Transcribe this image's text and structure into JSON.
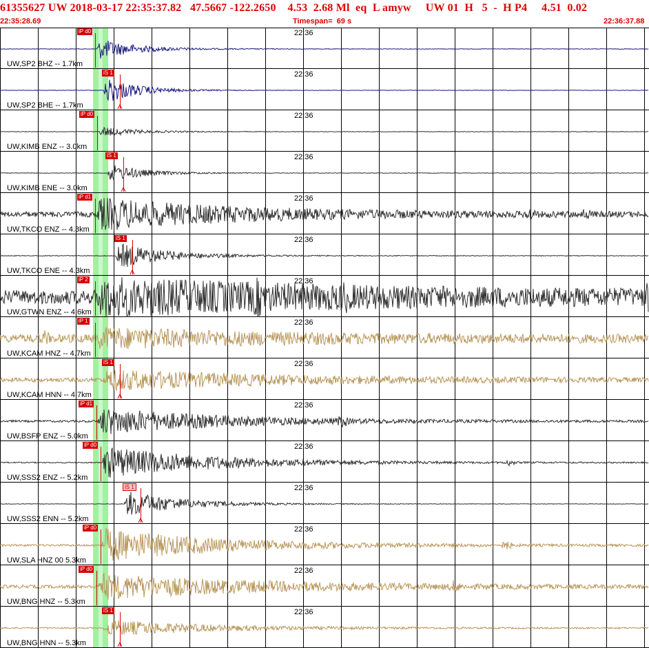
{
  "header": {
    "line1": "61355627 UW 2018-03-17 22:35:37.82   47.5667 -122.2650    4.53  2.68 Ml  eq  L amyw     UW 01  H   5  -  H P4     4.51  0.02",
    "start_time": "22:35:28.69",
    "timespan": "Timespan=  69 s",
    "end_time": "22:36:37.88"
  },
  "colors": {
    "accent": "#e00000",
    "grid": "#000000",
    "pick_box": "#d40000",
    "pick_window": "#90ee90",
    "trace_blue": "#1a1a7a",
    "trace_dark": "#303030",
    "trace_tan": "#b8965a"
  },
  "traces": [
    {
      "label": "UW,SP2 BHZ -- 1.7km",
      "time": "22:36",
      "color": "blue",
      "pick": "iP d0",
      "pick_kind": "P",
      "onset": 140,
      "decay": 55,
      "amp": 16,
      "noise": 0.4,
      "bursts": []
    },
    {
      "label": "UW,SP2 BHE -- 1.7km",
      "time": "22:36",
      "color": "blue",
      "pick": "iS 1",
      "pick_kind": "S",
      "onset": 150,
      "decay": 45,
      "amp": 22,
      "noise": 0.3,
      "bursts": []
    },
    {
      "label": "UW,KIMB ENZ -- 3.0km",
      "time": "22:36",
      "color": "dark",
      "pick": "iP d0",
      "pick_kind": "P",
      "onset": 143,
      "decay": 50,
      "amp": 8,
      "noise": 0.4,
      "bursts": []
    },
    {
      "label": "UW,KIMB ENE -- 3.0km",
      "time": "22:36",
      "color": "dark",
      "pick": "iS 1",
      "pick_kind": "S",
      "onset": 155,
      "decay": 50,
      "amp": 14,
      "noise": 0.4,
      "bursts": []
    },
    {
      "label": "UW,TKCO ENZ -- 4.3km",
      "time": "22:36",
      "color": "dark",
      "pick": "iP d1",
      "pick_kind": "P",
      "onset": 140,
      "decay": 200,
      "amp": 22,
      "noise": 4,
      "bursts": [
        [
          770,
          6
        ],
        [
          850,
          5
        ]
      ]
    },
    {
      "label": "UW,TKCO ENE -- 4.3km",
      "time": "22:36",
      "color": "dark",
      "pick": "iS 1",
      "pick_kind": "S",
      "onset": 168,
      "decay": 70,
      "amp": 20,
      "noise": 0.5,
      "bursts": []
    },
    {
      "label": "UW,GTWN ENZ -- 4.6km",
      "time": "22:36",
      "color": "dark",
      "pick": "iP 2",
      "pick_kind": "P",
      "onset": 140,
      "decay": 400,
      "amp": 22,
      "noise": 10,
      "bursts": [
        [
          375,
          10
        ],
        [
          500,
          6
        ],
        [
          940,
          10
        ]
      ]
    },
    {
      "label": "UW,KCAM HNZ -- 4.7km",
      "time": "22:36",
      "color": "tan",
      "pick": "iP 1",
      "pick_kind": "P",
      "onset": 140,
      "decay": 250,
      "amp": 12,
      "noise": 6,
      "bursts": [
        [
          65,
          6
        ]
      ]
    },
    {
      "label": "UW,KCAM HNN -- 4.7km",
      "time": "22:36",
      "color": "tan",
      "pick": "iS 1",
      "pick_kind": "S",
      "onset": 150,
      "decay": 250,
      "amp": 14,
      "noise": 3,
      "bursts": []
    },
    {
      "label": "UW,BSFP ENZ -- 5.0km",
      "time": "22:36",
      "color": "dark",
      "pick": "iP d1",
      "pick_kind": "P",
      "onset": 142,
      "decay": 180,
      "amp": 20,
      "noise": 1.5,
      "bursts": [
        [
          497,
          6
        ]
      ]
    },
    {
      "label": "UW,SSS2 ENZ -- 5.2km",
      "time": "22:36",
      "color": "dark",
      "pick": "iP d0",
      "pick_kind": "P",
      "onset": 148,
      "decay": 160,
      "amp": 24,
      "noise": 0.8,
      "bursts": [
        [
          740,
          4
        ]
      ]
    },
    {
      "label": "UW,SSS2 ENN -- 5.2km",
      "time": "22:36",
      "color": "dark",
      "pick": "iS 1",
      "pick_kind": "Spale",
      "onset": 180,
      "decay": 80,
      "amp": 20,
      "noise": 0.4,
      "bursts": []
    },
    {
      "label": "UW,SLA HNZ 00 5.3km",
      "time": "22:36",
      "color": "tan",
      "pick": "iP d0",
      "pick_kind": "P",
      "onset": 148,
      "decay": 170,
      "amp": 24,
      "noise": 1.5,
      "bursts": [
        [
          735,
          6
        ]
      ]
    },
    {
      "label": "UW,BNG HNZ -- 5.3km",
      "time": "22:36",
      "color": "tan",
      "pick": "iP d0",
      "pick_kind": "P",
      "onset": 142,
      "decay": 230,
      "amp": 18,
      "noise": 2.5,
      "bursts": [
        [
          660,
          6
        ]
      ]
    },
    {
      "label": "UW,BNG HNN -- 5.3km",
      "time": "22:36",
      "color": "tan",
      "pick": "iS 1",
      "pick_kind": "S",
      "onset": 150,
      "decay": 150,
      "amp": 12,
      "noise": 1,
      "bursts": []
    }
  ]
}
